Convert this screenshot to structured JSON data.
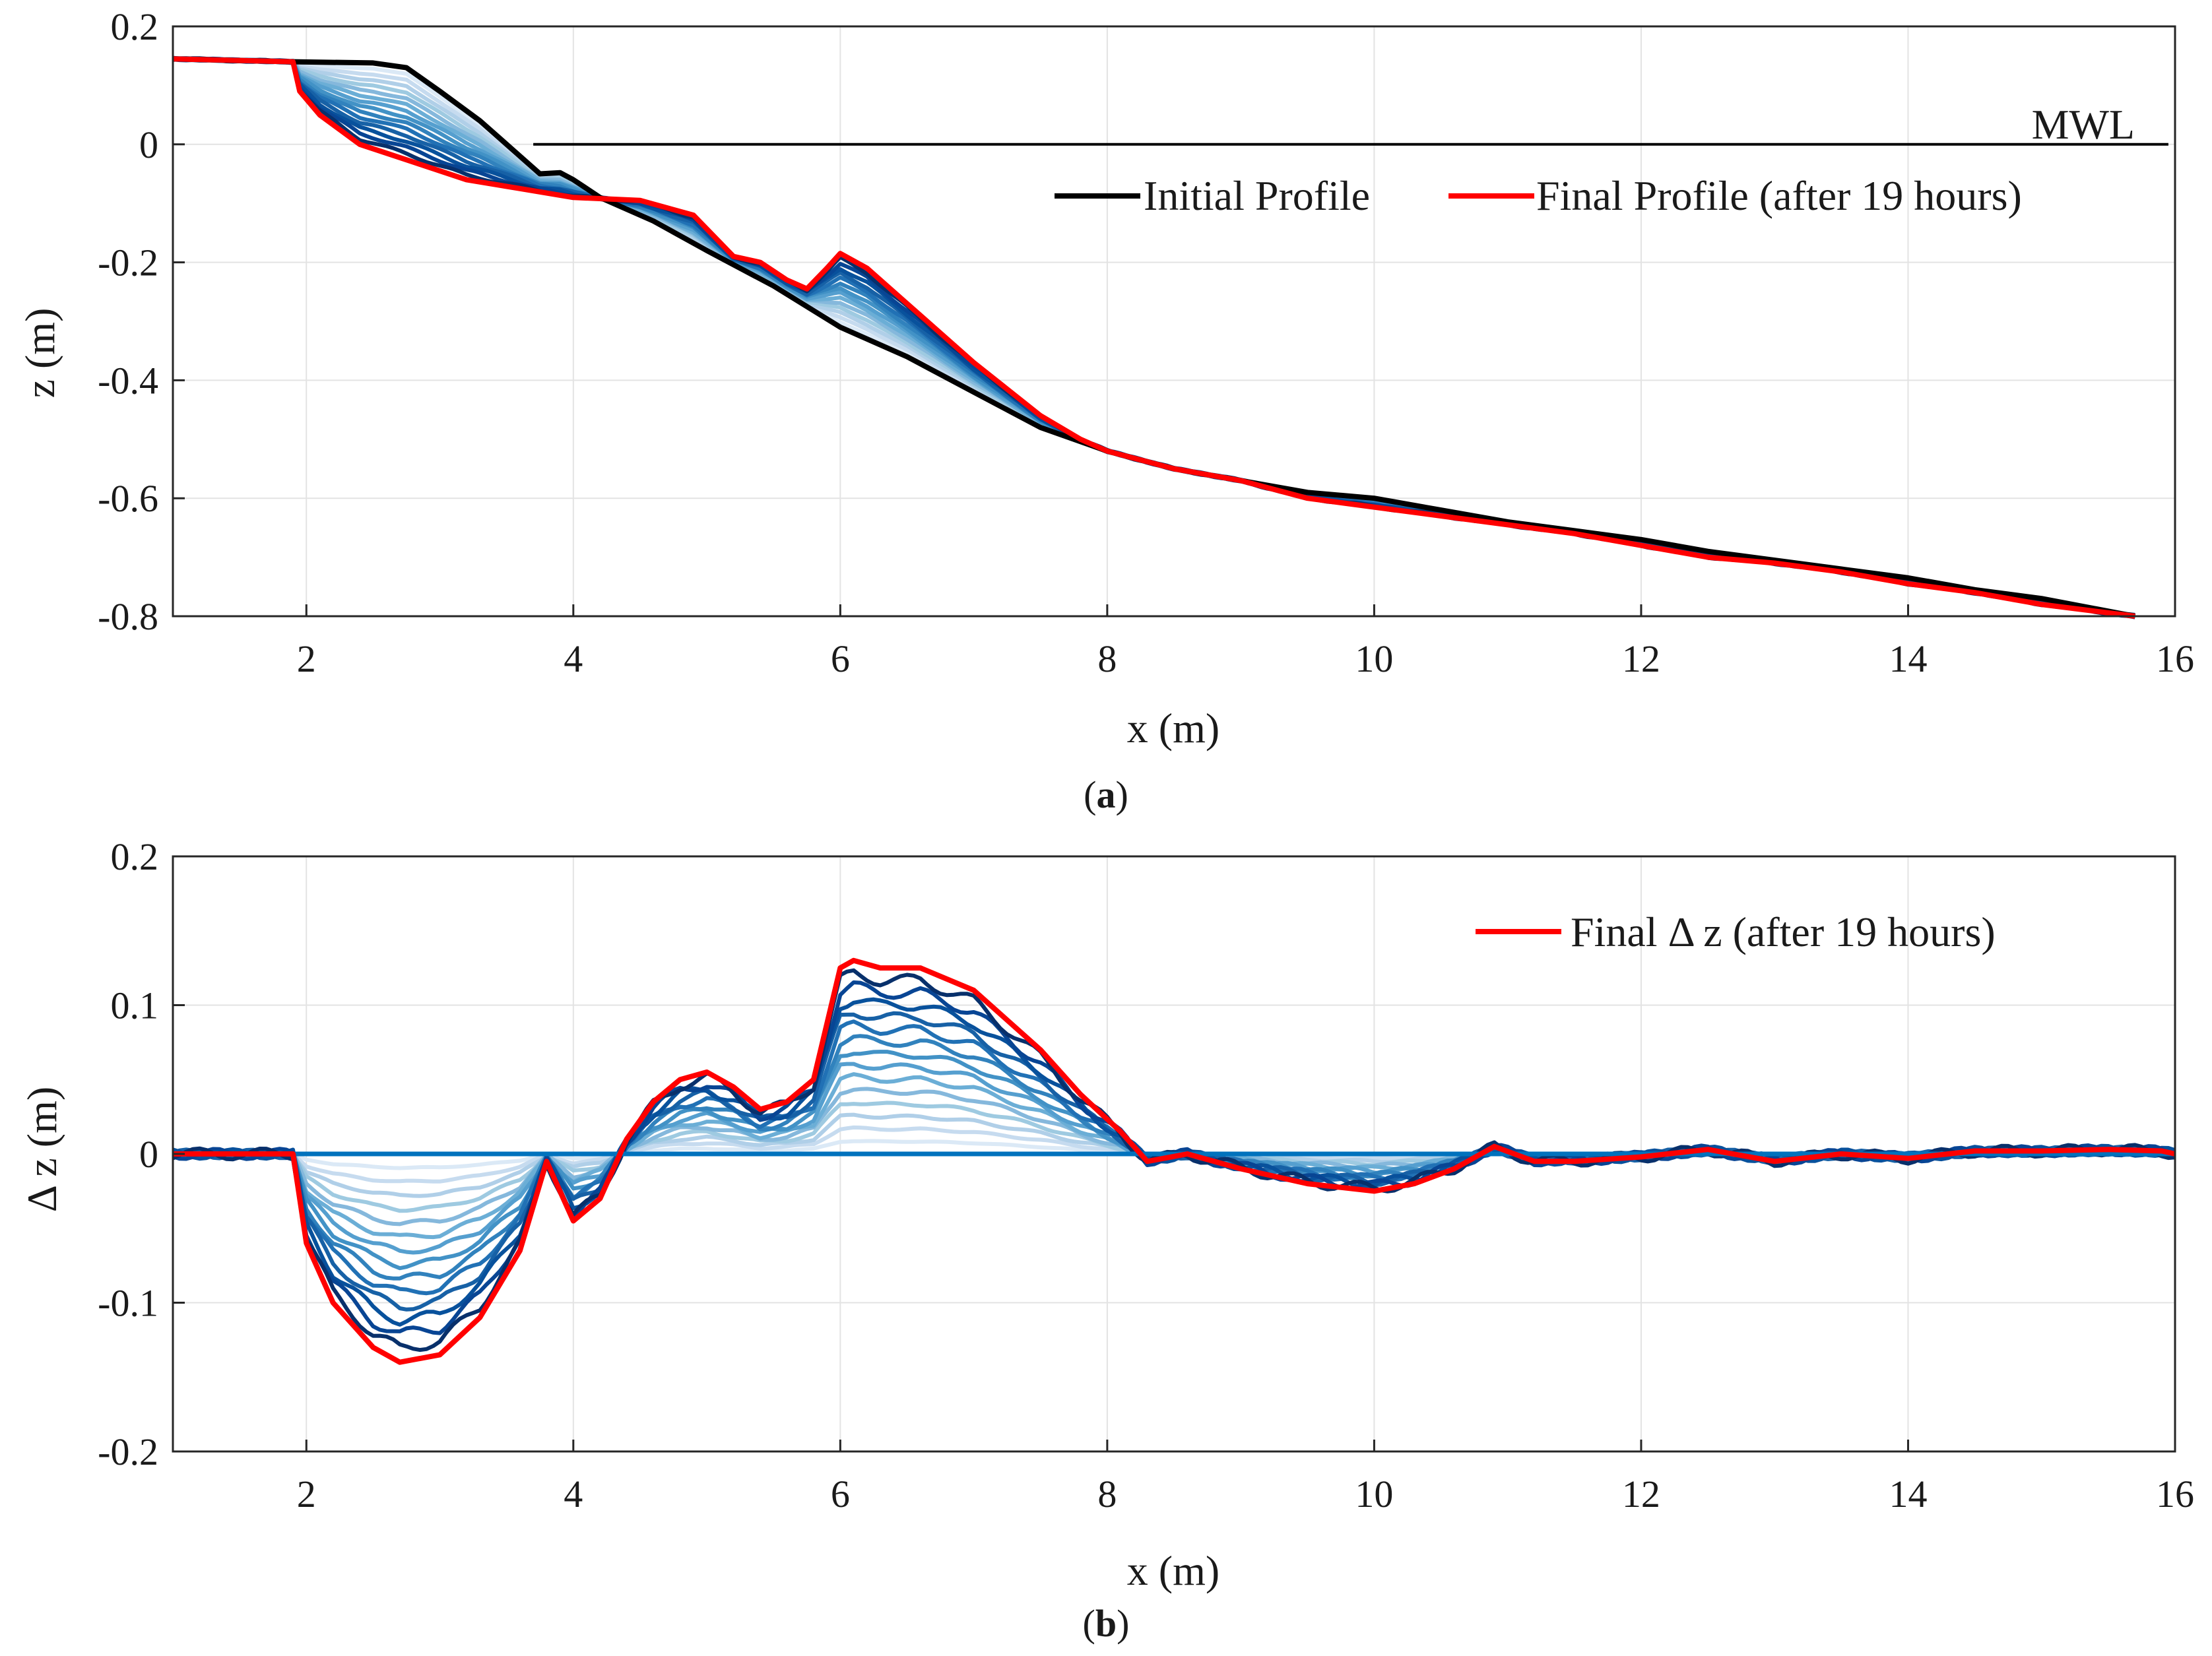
{
  "chart_data": [
    {
      "id": "a",
      "type": "line",
      "caption_letter": "a",
      "xlabel": "x (m)",
      "ylabel": "z (m)",
      "xlim": [
        1,
        16
      ],
      "ylim": [
        -0.8,
        0.2
      ],
      "xticks": [
        2,
        4,
        6,
        8,
        10,
        12,
        14,
        16
      ],
      "yticks": [
        -0.8,
        -0.6,
        -0.4,
        -0.2,
        0,
        0.2
      ],
      "yticklabels": [
        "-0.8",
        "-0.6",
        "-0.4",
        "-0.2",
        "0",
        "0.2"
      ],
      "grid": true,
      "mwl_label": "MWL",
      "legend": {
        "placement": "top-right",
        "entries": [
          {
            "label": "Initial Profile",
            "color": "#000000"
          },
          {
            "label": "Final Profile (after 19 hours)",
            "color": "#ff0000"
          }
        ]
      },
      "series": [
        {
          "name": "MWL",
          "color": "#000000",
          "x": [
            3.7,
            15.95
          ],
          "y": [
            0,
            0
          ]
        },
        {
          "name": "Initial Profile",
          "color": "#000000",
          "x": [
            1,
            1.9,
            2.5,
            2.75,
            3.0,
            3.3,
            3.55,
            3.75,
            3.9,
            4.0,
            4.2,
            4.6,
            5.0,
            5.5,
            6.0,
            6.5,
            7.0,
            7.5,
            8.0,
            8.5,
            9.0,
            9.5,
            10.0,
            10.5,
            11.0,
            11.5,
            12.0,
            12.5,
            13.0,
            13.5,
            14.0,
            14.5,
            15.0,
            15.7
          ],
          "y": [
            0.145,
            0.14,
            0.138,
            0.13,
            0.09,
            0.04,
            -0.01,
            -0.05,
            -0.048,
            -0.06,
            -0.09,
            -0.13,
            -0.18,
            -0.24,
            -0.31,
            -0.36,
            -0.42,
            -0.48,
            -0.52,
            -0.55,
            -0.57,
            -0.59,
            -0.6,
            -0.62,
            -0.64,
            -0.655,
            -0.67,
            -0.69,
            -0.705,
            -0.72,
            -0.735,
            -0.755,
            -0.77,
            -0.8
          ]
        },
        {
          "name": "Final Profile (after 19 hours)",
          "color": "#ff0000",
          "x": [
            1,
            1.9,
            1.95,
            2.1,
            2.4,
            2.8,
            3.2,
            3.6,
            4.0,
            4.5,
            4.9,
            5.2,
            5.4,
            5.6,
            5.75,
            5.9,
            6.0,
            6.2,
            6.5,
            7.0,
            7.5,
            7.8,
            8.0,
            8.5,
            9.0,
            9.5,
            10.0,
            10.5,
            11.0,
            11.5,
            12.0,
            12.5,
            13.0,
            13.5,
            14.0,
            14.5,
            15.0,
            15.7
          ],
          "y": [
            0.145,
            0.14,
            0.09,
            0.05,
            0.0,
            -0.03,
            -0.06,
            -0.075,
            -0.09,
            -0.095,
            -0.12,
            -0.19,
            -0.2,
            -0.23,
            -0.245,
            -0.21,
            -0.185,
            -0.21,
            -0.27,
            -0.37,
            -0.46,
            -0.5,
            -0.52,
            -0.55,
            -0.57,
            -0.6,
            -0.615,
            -0.63,
            -0.645,
            -0.66,
            -0.68,
            -0.7,
            -0.71,
            -0.725,
            -0.745,
            -0.76,
            -0.78,
            -0.8
          ]
        }
      ]
    },
    {
      "id": "b",
      "type": "line",
      "caption_letter": "b",
      "xlabel": "x (m)",
      "ylabel": "Δ z (m)",
      "xlim": [
        1,
        16
      ],
      "ylim": [
        -0.2,
        0.2
      ],
      "xticks": [
        2,
        4,
        6,
        8,
        10,
        12,
        14,
        16
      ],
      "yticks": [
        -0.2,
        -0.1,
        0,
        0.1,
        0.2
      ],
      "yticklabels": [
        "-0.2",
        "-0.1",
        "0",
        "0.1",
        "0.2"
      ],
      "grid": true,
      "legend": {
        "placement": "top-right",
        "entries": [
          {
            "label": "Final Δ z (after 19 hours)",
            "color": "#ff0000"
          }
        ]
      },
      "series": [
        {
          "name": "Zero line",
          "color": "#0072bd",
          "x": [
            1,
            16
          ],
          "y": [
            0,
            0
          ]
        },
        {
          "name": "Final Δ z (after 19 hours)",
          "color": "#ff0000",
          "x": [
            1,
            1.9,
            2.0,
            2.2,
            2.5,
            2.7,
            3.0,
            3.3,
            3.6,
            3.8,
            4.0,
            4.2,
            4.4,
            4.6,
            4.8,
            5.0,
            5.2,
            5.4,
            5.6,
            5.8,
            6.0,
            6.1,
            6.3,
            6.6,
            7.0,
            7.5,
            7.8,
            8.1,
            8.3,
            8.6,
            9.0,
            9.5,
            10.0,
            10.3,
            10.6,
            10.9,
            11.2,
            11.5,
            12.0,
            12.5,
            13.0,
            13.5,
            14.0,
            14.5,
            15.0,
            15.5,
            15.9,
            16.0
          ],
          "y": [
            0,
            0,
            -0.06,
            -0.1,
            -0.13,
            -0.14,
            -0.135,
            -0.11,
            -0.065,
            -0.005,
            -0.045,
            -0.03,
            0.01,
            0.035,
            0.05,
            0.055,
            0.045,
            0.03,
            0.035,
            0.05,
            0.125,
            0.13,
            0.125,
            0.125,
            0.11,
            0.07,
            0.04,
            0.015,
            -0.005,
            0.0,
            -0.01,
            -0.02,
            -0.025,
            -0.02,
            -0.01,
            0.005,
            -0.005,
            -0.005,
            -0.002,
            0.003,
            -0.005,
            0.0,
            -0.003,
            0.002,
            0.002,
            0.003,
            0.002,
            0.0
          ]
        }
      ]
    }
  ]
}
